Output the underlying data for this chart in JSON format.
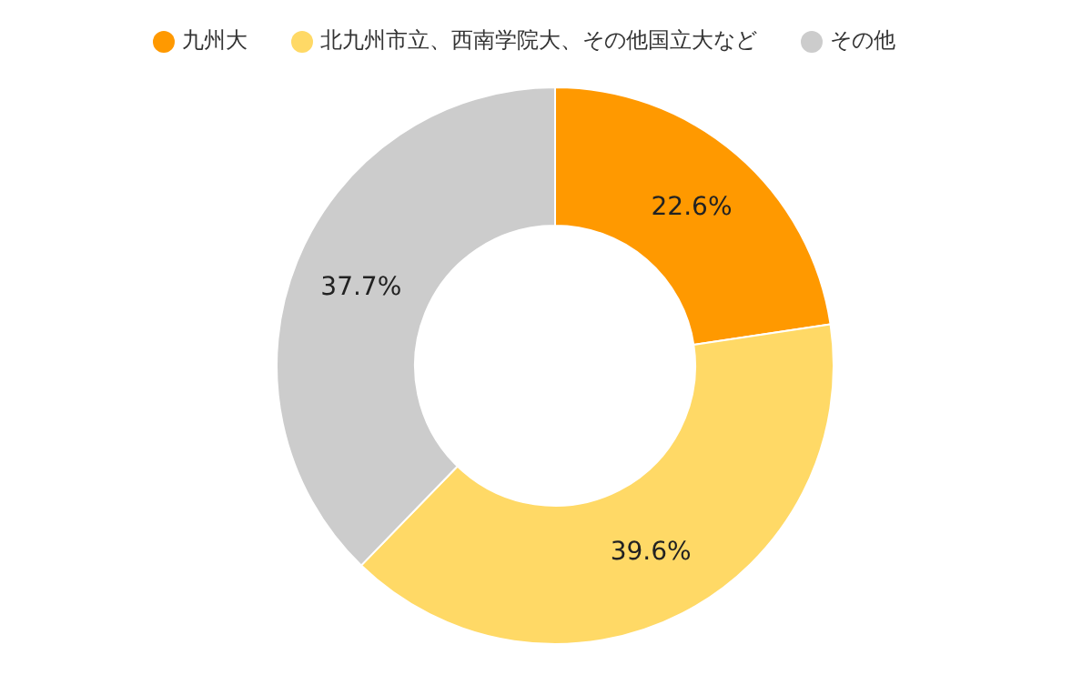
{
  "chart_data": {
    "type": "donut",
    "categories": [
      "九州大",
      "北九州市立、西南学院大、その他国立大など",
      "その他"
    ],
    "values": [
      22.6,
      39.6,
      37.7
    ],
    "colors": [
      "#ff9900",
      "#ffd966",
      "#cccccc"
    ],
    "value_labels": [
      "22.6%",
      "39.6%",
      "37.7%"
    ],
    "legend": "top"
  }
}
